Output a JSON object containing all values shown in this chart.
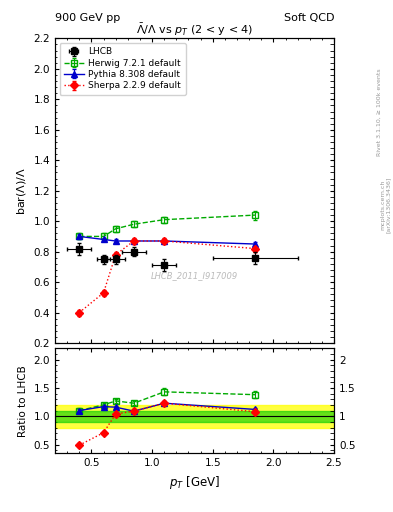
{
  "title_top": "900 GeV pp",
  "title_right": "Soft QCD",
  "plot_title": "$\\bar{\\Lambda}/\\Lambda$ vs $p_{T}$ (2 < y < 4)",
  "ylabel_main": "bar($\\Lambda$)/$\\Lambda$",
  "ylabel_ratio": "Ratio to LHCB",
  "xlabel": "$p_{T}$ [GeV]",
  "watermark": "LHCB_2011_I917009",
  "rivet_label": "Rivet 3.1.10, ≥ 100k events",
  "arxiv_label": "[arXiv:1306.3436]",
  "mcplots_label": "mcplots.cern.ch",
  "lhcb_x": [
    0.4,
    0.6,
    0.7,
    0.85,
    1.1,
    1.85
  ],
  "lhcb_y": [
    0.82,
    0.75,
    0.75,
    0.8,
    0.71,
    0.76
  ],
  "lhcb_yerr": [
    0.04,
    0.03,
    0.03,
    0.03,
    0.04,
    0.04
  ],
  "lhcb_xerr": [
    0.1,
    0.05,
    0.075,
    0.1,
    0.1,
    0.35
  ],
  "herwig_x": [
    0.4,
    0.6,
    0.7,
    0.85,
    1.1,
    1.85
  ],
  "herwig_y": [
    0.9,
    0.9,
    0.95,
    0.98,
    1.01,
    1.04
  ],
  "herwig_yerr": [
    0.02,
    0.02,
    0.02,
    0.02,
    0.02,
    0.03
  ],
  "pythia_x": [
    0.4,
    0.6,
    0.7,
    0.85,
    1.1,
    1.85
  ],
  "pythia_y": [
    0.9,
    0.88,
    0.87,
    0.87,
    0.87,
    0.85
  ],
  "pythia_yerr": [
    0.015,
    0.01,
    0.01,
    0.01,
    0.01,
    0.015
  ],
  "sherpa_x": [
    0.4,
    0.6,
    0.7,
    0.85,
    1.1,
    1.85
  ],
  "sherpa_y": [
    0.4,
    0.53,
    0.78,
    0.87,
    0.87,
    0.82
  ],
  "sherpa_yerr": [
    0.02,
    0.02,
    0.02,
    0.02,
    0.02,
    0.02
  ],
  "herwig_ratio_y": [
    1.1,
    1.2,
    1.27,
    1.23,
    1.43,
    1.38
  ],
  "pythia_ratio_y": [
    1.1,
    1.17,
    1.16,
    1.09,
    1.23,
    1.12
  ],
  "sherpa_ratio_y": [
    0.49,
    0.71,
    1.04,
    1.09,
    1.23,
    1.08
  ],
  "herwig_ratio_yerr": [
    0.04,
    0.04,
    0.04,
    0.04,
    0.06,
    0.06
  ],
  "pythia_ratio_yerr": [
    0.03,
    0.02,
    0.02,
    0.02,
    0.03,
    0.03
  ],
  "sherpa_ratio_yerr": [
    0.04,
    0.03,
    0.03,
    0.03,
    0.03,
    0.03
  ],
  "green_band_lo": 0.9,
  "green_band_hi": 1.1,
  "yellow_band_lo": 0.8,
  "yellow_band_hi": 1.2,
  "xlim": [
    0.2,
    2.5
  ],
  "ylim_main": [
    0.2,
    2.2
  ],
  "ylim_ratio": [
    0.35,
    2.2
  ],
  "yticks_main": [
    0.2,
    0.4,
    0.6,
    0.8,
    1.0,
    1.2,
    1.4,
    1.6,
    1.8,
    2.0,
    2.2
  ],
  "yticks_ratio": [
    0.5,
    1.0,
    1.5,
    2.0
  ],
  "color_lhcb": "#000000",
  "color_herwig": "#00aa00",
  "color_pythia": "#0000cc",
  "color_sherpa": "#ff0000",
  "bg_color": "#ffffff"
}
